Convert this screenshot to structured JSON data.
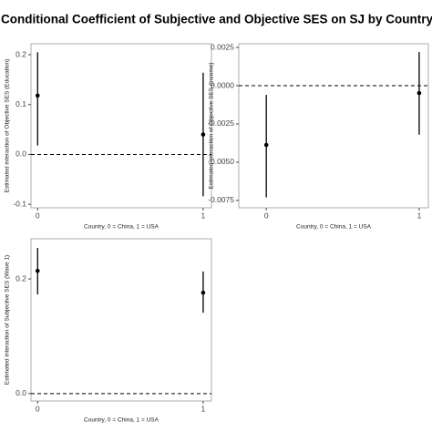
{
  "title": "Conditional Coefficient of Subjective and Objective SES on SJ by Country",
  "chart_data": [
    {
      "type": "errorbar",
      "xlabel": "Country, 0 = China, 1 = USA",
      "ylabel": "Estimated interaction of Objective SES (Education)",
      "x": [
        0,
        1
      ],
      "values": [
        0.118,
        0.04
      ],
      "lower": [
        0.018,
        -0.084
      ],
      "upper": [
        0.205,
        0.164
      ],
      "xlim": [
        -0.04,
        1.05
      ],
      "xticks": [
        0,
        1
      ],
      "ylim": [
        -0.107,
        0.222
      ],
      "yticks": [
        {
          "value": -0.1,
          "label": "-0.1"
        },
        {
          "value": 0,
          "label": "0.0"
        },
        0.1,
        0.2
      ],
      "reference_line": 0,
      "color": "#000000"
    },
    {
      "type": "errorbar",
      "xlabel": "Country, 0 = China, 1 = USA",
      "ylabel": "Estimated interaction of Objective SES (Income)",
      "x": [
        0,
        1
      ],
      "values": [
        -0.00387,
        -0.00048
      ],
      "lower": [
        -0.0073,
        -0.0032
      ],
      "upper": [
        -0.0006,
        0.0022
      ],
      "xlim": [
        -0.18,
        1.06
      ],
      "xticks": [
        0,
        1
      ],
      "ylim": [
        -0.00798,
        0.00274
      ],
      "yticks": [
        -0.0075,
        {
          "value": -0.005,
          "label": "-0.0050"
        },
        -0.0025,
        {
          "value": 0,
          "label": "0.0000"
        },
        0.0025
      ],
      "reference_line": 0,
      "color": "#000000"
    },
    {
      "type": "errorbar",
      "xlabel": "Country, 0 = China, 1 = USA",
      "ylabel": "Estimated interaction of Subjective SES (Wave 1)",
      "x": [
        0,
        1
      ],
      "values": [
        0.214,
        0.176
      ],
      "lower": [
        0.173,
        0.141
      ],
      "upper": [
        0.254,
        0.213
      ],
      "xlim": [
        -0.04,
        1.05
      ],
      "xticks": [
        0,
        1
      ],
      "ylim": [
        -0.013,
        0.27
      ],
      "yticks": [
        {
          "value": 0,
          "label": "0.0"
        },
        0.2
      ],
      "reference_line": 0,
      "color": "#000000"
    }
  ]
}
